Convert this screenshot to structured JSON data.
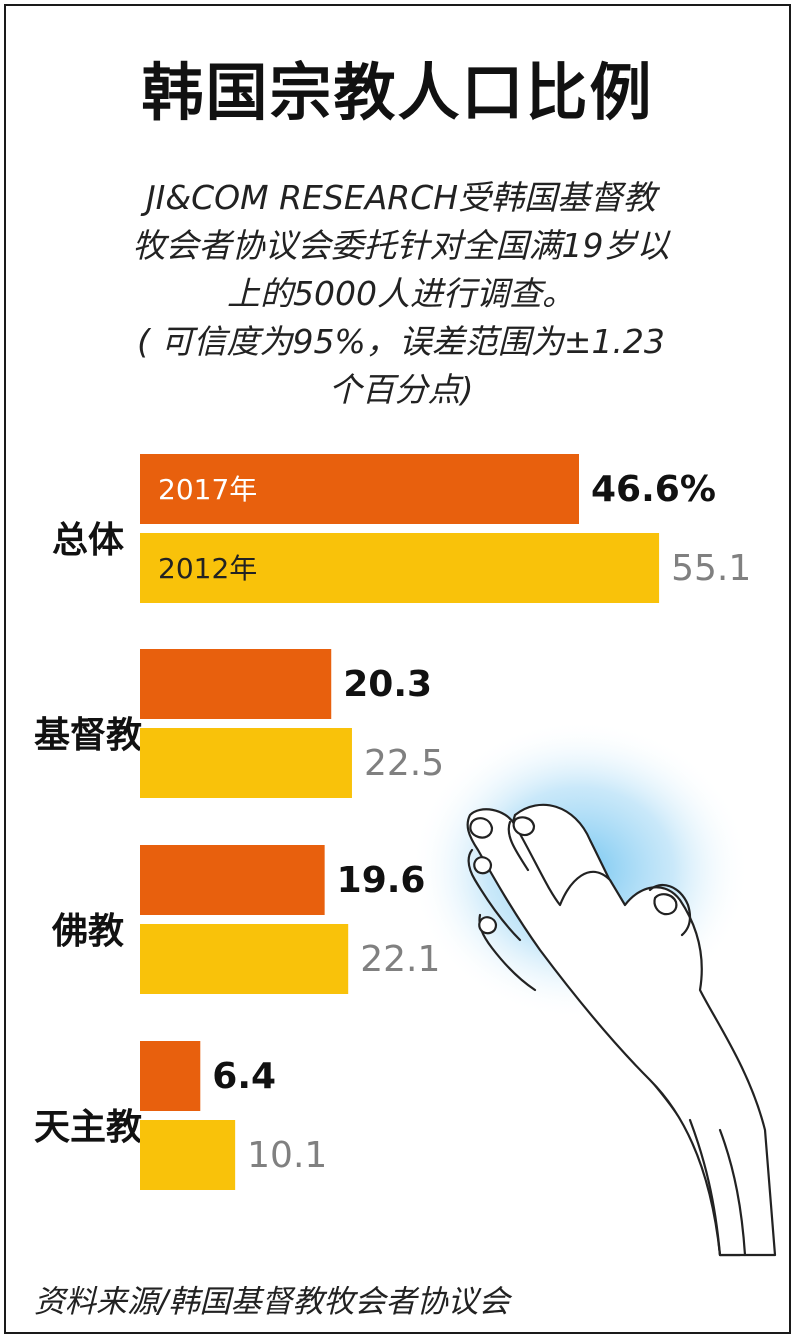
{
  "title": "韩国宗教人口比例",
  "subtitle_lines": [
    "JI&COM RESEARCH受韩国基督教",
    "牧会者协议会委托针对全国满19岁以",
    "上的5000人进行调查。",
    "( 可信度为95%，误差范围为±1.23",
    "个百分点)"
  ],
  "source": "资料来源/韩国基督教牧会者协议会",
  "colors": {
    "bar_2017": "#E8600D",
    "bar_2012": "#F9C20A",
    "halo": "#6EC3F0"
  },
  "icons": [
    "praying-hands-illustration"
  ],
  "chart_data": {
    "type": "bar",
    "orientation": "horizontal",
    "categories": [
      "总体",
      "基督教",
      "佛教",
      "天主教"
    ],
    "series": [
      {
        "name": "2017年",
        "values": [
          46.6,
          20.3,
          19.6,
          6.4
        ],
        "labels": [
          "46.6%",
          "20.3",
          "19.6",
          "6.4"
        ]
      },
      {
        "name": "2012年",
        "values": [
          55.1,
          22.5,
          22.1,
          10.1
        ],
        "labels": [
          "55.1",
          "22.5",
          "22.1",
          "10.1"
        ]
      }
    ],
    "xlim": [
      0,
      60
    ],
    "grid": false,
    "legend_placement": "inside-first-bars"
  }
}
